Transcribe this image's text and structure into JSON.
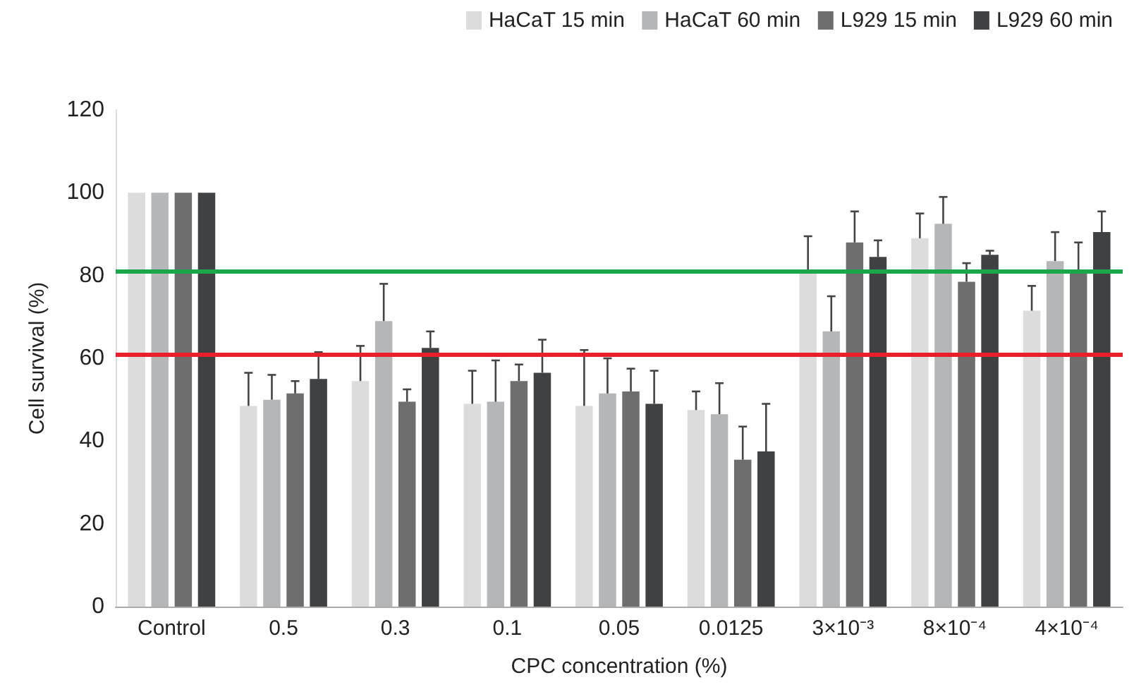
{
  "chart_data": {
    "type": "bar",
    "xlabel": "CPC concentration (%)",
    "ylabel": "Cell survival (%)",
    "categories": [
      "Control",
      "0.5",
      "0.3",
      "0.1",
      "0.05",
      "0.0125",
      "3×10⁻³",
      "8×10⁻⁴",
      "4×10⁻⁴"
    ],
    "series": [
      {
        "name": "HaCaT 15 min",
        "color": "#dcdcdc",
        "values": [
          100,
          48.5,
          54.5,
          49,
          48.5,
          47.5,
          80.5,
          89,
          71.5
        ],
        "errors": [
          null,
          [
            48.5,
            56.5
          ],
          [
            54.5,
            63
          ],
          [
            49,
            57
          ],
          [
            48.5,
            62
          ],
          [
            47.5,
            52
          ],
          [
            80.5,
            89.5
          ],
          [
            89,
            95
          ],
          [
            71.5,
            77.5
          ]
        ]
      },
      {
        "name": "HaCaT 60 min",
        "color": "#b4b6b8",
        "values": [
          100,
          50,
          69,
          49.5,
          51.5,
          46.5,
          66.5,
          92.5,
          83.5
        ],
        "errors": [
          null,
          [
            50,
            56
          ],
          [
            69,
            78
          ],
          [
            49.5,
            59.5
          ],
          [
            51.5,
            60
          ],
          [
            46.5,
            54
          ],
          [
            66.5,
            75
          ],
          [
            92.5,
            99
          ],
          [
            83.5,
            90.5
          ]
        ]
      },
      {
        "name": "L929 15 min",
        "color": "#6e6e6e",
        "values": [
          100,
          51.5,
          49.5,
          54.5,
          52,
          35.5,
          88,
          78.5,
          81
        ],
        "errors": [
          null,
          [
            51.5,
            54.5
          ],
          [
            49.5,
            52.5
          ],
          [
            54.5,
            58.5
          ],
          [
            52,
            57.5
          ],
          [
            35.5,
            43.5
          ],
          [
            88,
            95.5
          ],
          [
            78.5,
            83
          ],
          [
            81,
            88
          ]
        ]
      },
      {
        "name": "L929 60 min",
        "color": "#404142",
        "values": [
          100,
          55,
          62.5,
          56.5,
          49,
          37.5,
          84.5,
          85,
          90.5
        ],
        "errors": [
          null,
          [
            55,
            61.5
          ],
          [
            62.5,
            66.5
          ],
          [
            56.5,
            64.5
          ],
          [
            49,
            57
          ],
          [
            37.5,
            49
          ],
          [
            84.5,
            88.5
          ],
          [
            85,
            86
          ],
          [
            90.5,
            95.5
          ]
        ]
      }
    ],
    "ylim": [
      0,
      120
    ],
    "yticks": [
      0,
      20,
      40,
      60,
      80,
      100,
      120
    ],
    "grid": false,
    "legend": "top right",
    "ref_lines": [
      {
        "axis": "y",
        "value": 81,
        "color": "#1aa64a"
      },
      {
        "axis": "y",
        "value": 61,
        "color": "#e8202a"
      }
    ]
  }
}
